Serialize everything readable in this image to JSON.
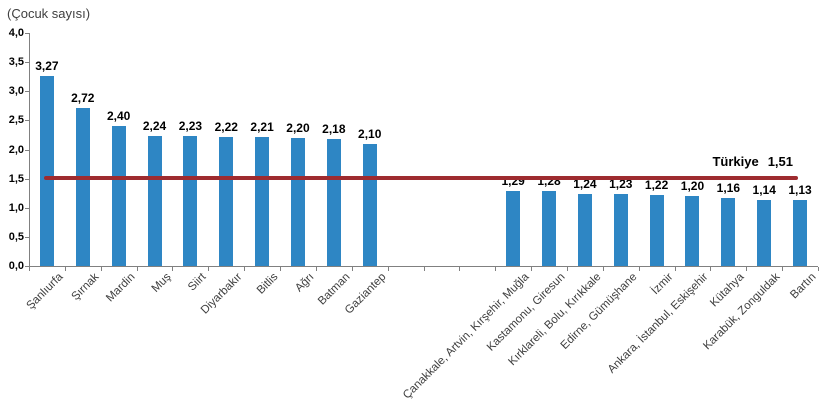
{
  "chart_data": {
    "type": "bar",
    "title": "(Çocuk sayısı)",
    "ylabel": "(Çocuk sayısı)",
    "ylim": [
      0,
      4
    ],
    "ytick_step": 0.5,
    "ytick_labels": [
      "0,0",
      "0,5",
      "1,0",
      "1,5",
      "2,0",
      "2,5",
      "3,0",
      "3,5",
      "4,0"
    ],
    "grid": "off",
    "legend": "none",
    "categories": [
      "Şanlıurfa",
      "Şırnak",
      "Mardin",
      "Muş",
      "Siirt",
      "Diyarbakır",
      "Bitlis",
      "Ağrı",
      "Batman",
      "Gaziantep",
      "Çanakkale, Artvin, Kırşehir, Muğla",
      "Kastamonu, Giresun",
      "Kırklareli, Bolu, Kırıkkale",
      "Edirne, Gümüşhane",
      "İzmir",
      "Ankara, İstanbul, Eskişehir",
      "Kütahya",
      "Karabük, Zonguldak",
      "Bartın"
    ],
    "values": [
      3.27,
      2.72,
      2.4,
      2.24,
      2.23,
      2.22,
      2.21,
      2.2,
      2.18,
      2.1,
      1.29,
      1.28,
      1.24,
      1.23,
      1.22,
      1.2,
      1.16,
      1.14,
      1.13
    ],
    "value_labels": [
      "3,27",
      "2,72",
      "2,40",
      "2,24",
      "2,23",
      "2,22",
      "2,21",
      "2,20",
      "2,18",
      "2,10",
      "1,29",
      "1,28",
      "1,24",
      "1,23",
      "1,22",
      "1,20",
      "1,16",
      "1,14",
      "1,13"
    ],
    "group_gap_after_index": 9,
    "gap_slots": 3,
    "bar_color": "#2E86C4",
    "axis_color": "#808080",
    "reference_line": {
      "label": "Türkiye",
      "value": 1.51,
      "value_display": "1,51",
      "color": "#9E2B2F"
    }
  }
}
